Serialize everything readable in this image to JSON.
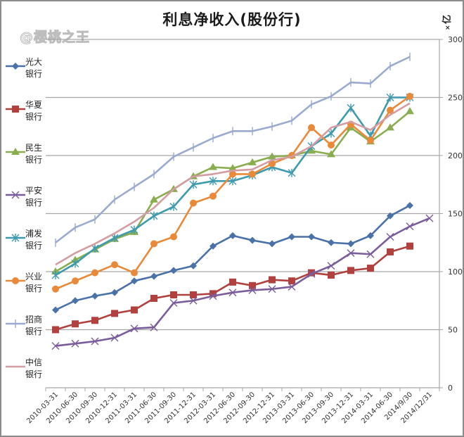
{
  "watermark": "@樱桃之王",
  "unit_label": "亿",
  "unit_mark": "×",
  "chart_data": {
    "type": "line",
    "title": "利息净收入(股份行)",
    "xlabel": "",
    "ylabel": "亿",
    "ylim": [
      0,
      300
    ],
    "yticks": [
      0,
      50,
      100,
      150,
      200,
      250,
      300
    ],
    "grid": true,
    "legend_position": "left",
    "categories": [
      "2010-03-31",
      "2010-06-30",
      "2010-09-30",
      "2010-12-31",
      "2011-03-31",
      "2011-06-30",
      "2011-09-30",
      "2011-12-31",
      "2012-03-31",
      "2012-06-30",
      "2012-09-30",
      "2012-12-31",
      "2013-03-31",
      "2013-06-30",
      "2013-09-30",
      "2013-12-31",
      "2014-03-31",
      "2014-06-30",
      "2014/9/30",
      "2014/12/31"
    ],
    "series": [
      {
        "name": "光大银行",
        "label_line1": "光大",
        "label_line2": "银行",
        "color": "#4a72a8",
        "marker": "diamond",
        "values": [
          67,
          75,
          79,
          82,
          92,
          96,
          101,
          105,
          122,
          131,
          127,
          124,
          130,
          130,
          125,
          124,
          131,
          148,
          157,
          null
        ]
      },
      {
        "name": "华夏银行",
        "label_line1": "华夏",
        "label_line2": "银行",
        "color": "#b0413e",
        "marker": "square",
        "values": [
          50,
          55,
          58,
          64,
          67,
          77,
          80,
          80,
          81,
          91,
          88,
          93,
          92,
          99,
          97,
          101,
          103,
          117,
          122,
          null
        ]
      },
      {
        "name": "民生银行",
        "label_line1": "民生",
        "label_line2": "银行",
        "color": "#8aad4f",
        "marker": "triangle",
        "values": [
          100,
          110,
          119,
          128,
          134,
          162,
          171,
          182,
          190,
          189,
          194,
          199,
          200,
          204,
          201,
          224,
          212,
          224,
          238,
          null
        ]
      },
      {
        "name": "平安银行",
        "label_line1": "平安",
        "label_line2": "银行",
        "color": "#7a5d9a",
        "marker": "x",
        "values": [
          36,
          38,
          40,
          43,
          51,
          52,
          73,
          75,
          79,
          82,
          84,
          85,
          87,
          98,
          105,
          116,
          115,
          130,
          139,
          146
        ]
      },
      {
        "name": "浦发银行",
        "label_line1": "浦发",
        "label_line2": "银行",
        "color": "#3e9aad",
        "marker": "star",
        "values": [
          97,
          107,
          120,
          129,
          136,
          148,
          156,
          175,
          178,
          178,
          183,
          190,
          185,
          208,
          219,
          241,
          217,
          250,
          250,
          null
        ]
      },
      {
        "name": "兴业银行",
        "label_line1": "兴业",
        "label_line2": "银行",
        "color": "#e88a3a",
        "marker": "circle",
        "values": [
          85,
          92,
          99,
          106,
          99,
          124,
          130,
          159,
          165,
          184,
          184,
          193,
          200,
          224,
          209,
          227,
          213,
          239,
          251,
          null
        ]
      },
      {
        "name": "招商银行",
        "label_line1": "招商",
        "label_line2": "银行",
        "color": "#9aabcf",
        "marker": "plus",
        "values": [
          125,
          138,
          145,
          162,
          173,
          184,
          199,
          207,
          215,
          221,
          221,
          225,
          230,
          244,
          251,
          263,
          262,
          277,
          285,
          null
        ]
      },
      {
        "name": "中信银行",
        "label_line1": "中信",
        "label_line2": "银行",
        "color": "#d49ca3",
        "marker": "none",
        "values": [
          106,
          116,
          124,
          133,
          143,
          155,
          171,
          182,
          184,
          187,
          188,
          196,
          199,
          208,
          224,
          229,
          222,
          235,
          245,
          null
        ]
      }
    ]
  }
}
